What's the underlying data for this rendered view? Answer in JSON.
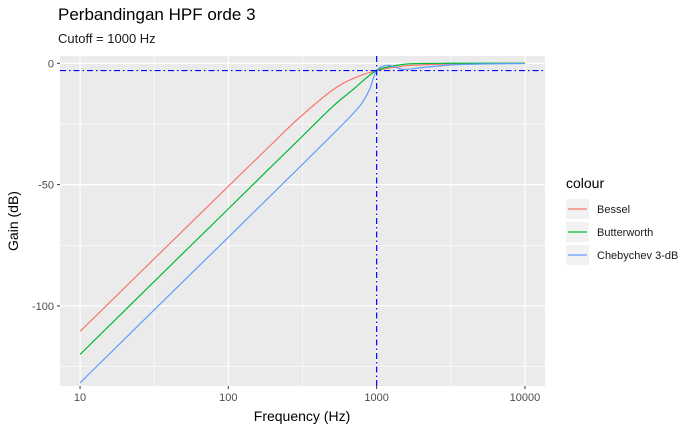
{
  "chart_data": {
    "type": "line",
    "title": "Perbandingan HPF orde 3",
    "subtitle": "Cutoff = 1000 Hz",
    "xlabel": "Frequency (Hz)",
    "ylabel": "Gain (dB)",
    "x_scale": "log10",
    "xlim": [
      10,
      10000
    ],
    "ylim": [
      -133,
      3
    ],
    "x_ticks": [
      10,
      100,
      1000,
      10000
    ],
    "x_tick_labels": [
      "10",
      "100",
      "1000",
      "10000"
    ],
    "y_ticks": [
      0,
      -50,
      -100
    ],
    "y_tick_labels": [
      "0",
      "-50",
      "-100"
    ],
    "grid": true,
    "legend_title": "colour",
    "legend_position": "right",
    "reference_lines": [
      {
        "orientation": "vertical",
        "x": 1000,
        "style": "dot-dash",
        "color": "#0000ff"
      },
      {
        "orientation": "horizontal",
        "y": -3,
        "style": "dot-dash",
        "color": "#0000ff"
      }
    ],
    "series": [
      {
        "name": "Bessel",
        "color": "#F8766D",
        "x": [
          10,
          20,
          50,
          100,
          200,
          300,
          500,
          700,
          1000,
          1500,
          2000,
          3000,
          5000,
          10000
        ],
        "y": [
          -110.5,
          -92.5,
          -68.7,
          -50.7,
          -32.8,
          -22.5,
          -11.2,
          -6.2,
          -3.0,
          -1.2,
          -0.7,
          -0.3,
          -0.1,
          0.0
        ]
      },
      {
        "name": "Butterworth",
        "color": "#00BA38",
        "x": [
          10,
          20,
          50,
          100,
          200,
          300,
          500,
          700,
          1000,
          1500,
          2000,
          3000,
          5000,
          10000
        ],
        "y": [
          -120.0,
          -101.9,
          -78.0,
          -60.0,
          -41.9,
          -31.4,
          -18.1,
          -10.6,
          -3.0,
          -0.5,
          -0.1,
          0.0,
          0.0,
          0.0
        ]
      },
      {
        "name": "Chebychev 3-dB",
        "color": "#619CFF",
        "x": [
          10,
          20,
          50,
          100,
          200,
          300,
          500,
          700,
          800,
          900,
          1000,
          1200,
          1500,
          2000,
          3000,
          5000,
          10000
        ],
        "y": [
          -131.7,
          -113.6,
          -89.7,
          -71.7,
          -53.6,
          -43.0,
          -29.6,
          -20.5,
          -16.2,
          -10.5,
          -3.0,
          -0.8,
          -2.5,
          -1.8,
          -0.8,
          -0.3,
          -0.1
        ]
      }
    ]
  }
}
